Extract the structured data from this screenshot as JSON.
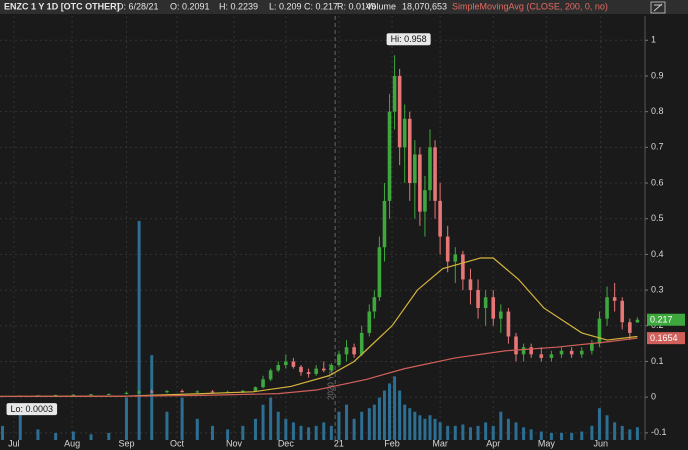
{
  "chart_data": {
    "type": "candlestick",
    "header": {
      "symbol": "ENZC 1 Y 1D [OTC OTHER]",
      "date": "D: 6/28/21",
      "open": "O: 0.2091",
      "high": "H: 0.2239",
      "low": "L: 0.209",
      "close": "C: 0.217",
      "range": "R: 0.0149",
      "volume_title": "Volume",
      "volume": "18,070,653",
      "study": "SimpleMovingAvg (CLOSE, 200, 0, no)"
    },
    "x": [
      1,
      8,
      15,
      22,
      29,
      36,
      43,
      50,
      55,
      60,
      66,
      72,
      78,
      84,
      90,
      96,
      101,
      104,
      107,
      110,
      113,
      116,
      119,
      122,
      125,
      128,
      131,
      134,
      137,
      140,
      143,
      146,
      148,
      150,
      152,
      154,
      156,
      158,
      160,
      162,
      164,
      166,
      168,
      170,
      172,
      174,
      177,
      180,
      183,
      186,
      189,
      192,
      195,
      198,
      201,
      204,
      207,
      210,
      214,
      218,
      222,
      226,
      230,
      234,
      237,
      240,
      243,
      246,
      249,
      252
    ],
    "open": [
      0.002,
      0.003,
      0.004,
      0.005,
      0.006,
      0.007,
      0.008,
      0.009,
      0.012,
      0.016,
      0.014,
      0.017,
      0.015,
      0.016,
      0.014,
      0.015,
      0.018,
      0.028,
      0.05,
      0.075,
      0.09,
      0.1,
      0.085,
      0.07,
      0.065,
      0.08,
      0.075,
      0.09,
      0.12,
      0.14,
      0.12,
      0.18,
      0.24,
      0.28,
      0.42,
      0.55,
      0.8,
      0.9,
      0.7,
      0.78,
      0.6,
      0.68,
      0.52,
      0.58,
      0.7,
      0.55,
      0.45,
      0.38,
      0.4,
      0.33,
      0.3,
      0.25,
      0.28,
      0.22,
      0.24,
      0.17,
      0.12,
      0.14,
      0.12,
      0.11,
      0.12,
      0.13,
      0.12,
      0.13,
      0.15,
      0.22,
      0.28,
      0.27,
      0.21,
      0.2091
    ],
    "high": [
      0.004,
      0.005,
      0.006,
      0.007,
      0.008,
      0.009,
      0.01,
      0.015,
      0.02,
      0.022,
      0.02,
      0.022,
      0.019,
      0.02,
      0.018,
      0.02,
      0.03,
      0.06,
      0.08,
      0.1,
      0.12,
      0.11,
      0.09,
      0.08,
      0.09,
      0.1,
      0.095,
      0.13,
      0.16,
      0.15,
      0.2,
      0.26,
      0.3,
      0.45,
      0.6,
      0.85,
      0.958,
      0.92,
      0.82,
      0.8,
      0.72,
      0.7,
      0.62,
      0.75,
      0.72,
      0.6,
      0.48,
      0.42,
      0.41,
      0.36,
      0.33,
      0.3,
      0.3,
      0.26,
      0.25,
      0.18,
      0.15,
      0.15,
      0.14,
      0.13,
      0.14,
      0.14,
      0.14,
      0.16,
      0.24,
      0.31,
      0.32,
      0.28,
      0.22,
      0.2239
    ],
    "low": [
      0.0003,
      0.002,
      0.003,
      0.004,
      0.005,
      0.006,
      0.007,
      0.008,
      0.01,
      0.012,
      0.011,
      0.013,
      0.012,
      0.013,
      0.011,
      0.012,
      0.016,
      0.025,
      0.045,
      0.07,
      0.08,
      0.08,
      0.06,
      0.055,
      0.06,
      0.07,
      0.07,
      0.085,
      0.1,
      0.11,
      0.115,
      0.17,
      0.22,
      0.27,
      0.38,
      0.5,
      0.75,
      0.65,
      0.6,
      0.55,
      0.5,
      0.48,
      0.45,
      0.55,
      0.5,
      0.4,
      0.35,
      0.32,
      0.3,
      0.26,
      0.22,
      0.2,
      0.2,
      0.18,
      0.15,
      0.1,
      0.1,
      0.11,
      0.1,
      0.1,
      0.11,
      0.11,
      0.11,
      0.12,
      0.14,
      0.2,
      0.24,
      0.19,
      0.16,
      0.209
    ],
    "close": [
      0.003,
      0.004,
      0.005,
      0.006,
      0.007,
      0.008,
      0.009,
      0.012,
      0.016,
      0.014,
      0.017,
      0.015,
      0.016,
      0.014,
      0.015,
      0.018,
      0.028,
      0.05,
      0.075,
      0.09,
      0.1,
      0.085,
      0.07,
      0.065,
      0.08,
      0.075,
      0.09,
      0.12,
      0.14,
      0.12,
      0.18,
      0.24,
      0.28,
      0.42,
      0.55,
      0.8,
      0.9,
      0.7,
      0.78,
      0.6,
      0.68,
      0.52,
      0.58,
      0.7,
      0.55,
      0.45,
      0.38,
      0.4,
      0.33,
      0.3,
      0.25,
      0.28,
      0.22,
      0.24,
      0.17,
      0.12,
      0.14,
      0.12,
      0.11,
      0.12,
      0.13,
      0.12,
      0.13,
      0.15,
      0.22,
      0.28,
      0.27,
      0.21,
      0.18,
      0.217
    ],
    "volume": [
      20,
      40,
      15,
      10,
      12,
      8,
      10,
      60,
      310,
      120,
      40,
      60,
      30,
      20,
      15,
      20,
      30,
      50,
      60,
      40,
      30,
      25,
      20,
      18,
      20,
      25,
      20,
      40,
      50,
      30,
      40,
      45,
      50,
      60,
      70,
      80,
      90,
      70,
      50,
      45,
      40,
      35,
      30,
      35,
      30,
      25,
      20,
      20,
      22,
      18,
      20,
      25,
      20,
      40,
      30,
      25,
      18,
      15,
      12,
      10,
      10,
      10,
      12,
      20,
      45,
      35,
      25,
      20,
      15,
      18.070653
    ],
    "volume_ylim": [
      0,
      600
    ],
    "up_color": "#3ea83e",
    "down_color": "#e77676",
    "volume_color": "#2c6f93",
    "lines": [
      {
        "color": "#d6b43c",
        "x": [
          0,
          50,
          80,
          100,
          115,
          130,
          140,
          155,
          165,
          175,
          190,
          195,
          205,
          215,
          230,
          240,
          252
        ],
        "values": [
          0.002,
          0.003,
          0.01,
          0.015,
          0.03,
          0.06,
          0.1,
          0.2,
          0.3,
          0.36,
          0.39,
          0.39,
          0.33,
          0.25,
          0.18,
          0.16,
          0.17
        ]
      },
      {
        "color": "#d2605a",
        "x": [
          0,
          50,
          80,
          110,
          125,
          145,
          160,
          180,
          200,
          220,
          240,
          252
        ],
        "values": [
          0.002,
          0.003,
          0.005,
          0.01,
          0.02,
          0.05,
          0.08,
          0.11,
          0.13,
          0.14,
          0.155,
          0.1654
        ]
      }
    ],
    "annotations": [
      {
        "x": 156,
        "y": 0.958,
        "text": "Hi: 0.958"
      },
      {
        "x": 1,
        "y": 0.0003,
        "text": "Lo: 0.0003"
      }
    ],
    "price_tags": [
      {
        "value": 0.217,
        "color": "#3ea83e"
      },
      {
        "value": 0.1654,
        "color": "#d2605a"
      }
    ],
    "year_marker": {
      "x": 132.5,
      "label": "2020 Year"
    },
    "xlim": [
      0,
      255
    ],
    "xticks": [
      {
        "value": 5.5,
        "label": "Jul"
      },
      {
        "value": 28.5,
        "label": "Aug"
      },
      {
        "value": 50,
        "label": "Sep"
      },
      {
        "value": 70,
        "label": "Oct"
      },
      {
        "value": 92.5,
        "label": "Nov"
      },
      {
        "value": 113,
        "label": "Dec"
      },
      {
        "value": 134,
        "label": "21"
      },
      {
        "value": 155,
        "label": "Feb"
      },
      {
        "value": 174,
        "label": "Mar"
      },
      {
        "value": 195,
        "label": "Apr"
      },
      {
        "value": 216,
        "label": "May"
      },
      {
        "value": 237.5,
        "label": "Jun"
      }
    ],
    "ylim": [
      -0.12,
      1.068
    ],
    "yticks": [
      -0.1,
      0,
      0.1,
      0.2,
      0.3,
      0.4,
      0.5,
      0.6,
      0.7,
      0.8,
      0.9,
      1
    ],
    "grid": true
  }
}
